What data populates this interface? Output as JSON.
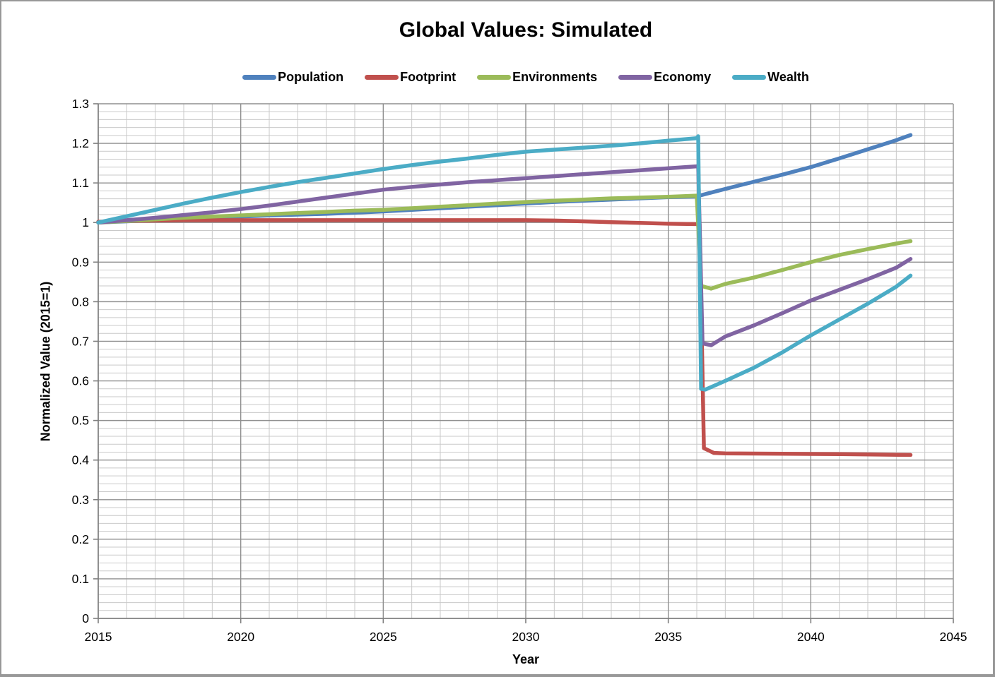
{
  "chart_data": {
    "type": "line",
    "title": "Global Values: Simulated",
    "xlabel": "Year",
    "ylabel": "Normalized Value (2015=1)",
    "legend_position": "top",
    "grid": "major-and-minor",
    "x_range": [
      2015,
      2045
    ],
    "x_major_step": 5,
    "x_minor_step": 1,
    "y_range": [
      0,
      1.3
    ],
    "y_major_step": 0.1,
    "y_minor_step": 0.02,
    "x_ticks": [
      "2015",
      "2020",
      "2025",
      "2030",
      "2035",
      "2040",
      "2045"
    ],
    "y_ticks": [
      "0",
      "0.1",
      "0.2",
      "0.3",
      "0.4",
      "0.5",
      "0.6",
      "0.7",
      "0.8",
      "0.9",
      "1",
      "1.1",
      "1.2",
      "1.3"
    ],
    "collapse_event_year": 2036,
    "series": [
      {
        "name": "Population",
        "color": "#4F81BD",
        "points": [
          [
            2015,
            1.0
          ],
          [
            2016,
            1.003
          ],
          [
            2017,
            1.006
          ],
          [
            2018,
            1.009
          ],
          [
            2019,
            1.012
          ],
          [
            2020,
            1.015
          ],
          [
            2021,
            1.018
          ],
          [
            2022,
            1.02
          ],
          [
            2023,
            1.022
          ],
          [
            2024,
            1.025
          ],
          [
            2025,
            1.028
          ],
          [
            2026,
            1.032
          ],
          [
            2027,
            1.036
          ],
          [
            2028,
            1.04
          ],
          [
            2029,
            1.044
          ],
          [
            2030,
            1.048
          ],
          [
            2031,
            1.052
          ],
          [
            2032,
            1.055
          ],
          [
            2033,
            1.058
          ],
          [
            2034,
            1.061
          ],
          [
            2035,
            1.064
          ],
          [
            2036,
            1.066
          ],
          [
            2036.2,
            1.07
          ],
          [
            2037,
            1.085
          ],
          [
            2038,
            1.103
          ],
          [
            2039,
            1.121
          ],
          [
            2040,
            1.14
          ],
          [
            2041,
            1.162
          ],
          [
            2042,
            1.185
          ],
          [
            2043,
            1.208
          ],
          [
            2043.5,
            1.221
          ]
        ]
      },
      {
        "name": "Footprint",
        "color": "#C0504D",
        "points": [
          [
            2015,
            1.002
          ],
          [
            2016,
            1.004
          ],
          [
            2017,
            1.005
          ],
          [
            2018,
            1.006
          ],
          [
            2020,
            1.006
          ],
          [
            2022,
            1.006
          ],
          [
            2024,
            1.006
          ],
          [
            2026,
            1.006
          ],
          [
            2028,
            1.006
          ],
          [
            2030,
            1.006
          ],
          [
            2031,
            1.005
          ],
          [
            2032,
            1.003
          ],
          [
            2033,
            1.001
          ],
          [
            2034,
            0.999
          ],
          [
            2035,
            0.997
          ],
          [
            2036.1,
            0.996
          ],
          [
            2036.25,
            0.43
          ],
          [
            2036.6,
            0.418
          ],
          [
            2037,
            0.417
          ],
          [
            2039,
            0.416
          ],
          [
            2041,
            0.415
          ],
          [
            2043.5,
            0.413
          ]
        ]
      },
      {
        "name": "Environments",
        "color": "#9BBB59",
        "points": [
          [
            2015,
            1.0
          ],
          [
            2016,
            1.004
          ],
          [
            2017,
            1.008
          ],
          [
            2018,
            1.012
          ],
          [
            2019,
            1.015
          ],
          [
            2020,
            1.018
          ],
          [
            2021,
            1.021
          ],
          [
            2022,
            1.024
          ],
          [
            2023,
            1.027
          ],
          [
            2024,
            1.03
          ],
          [
            2025,
            1.032
          ],
          [
            2026,
            1.036
          ],
          [
            2027,
            1.04
          ],
          [
            2028,
            1.044
          ],
          [
            2029,
            1.048
          ],
          [
            2030,
            1.052
          ],
          [
            2031,
            1.055
          ],
          [
            2032,
            1.058
          ],
          [
            2033,
            1.061
          ],
          [
            2034,
            1.063
          ],
          [
            2035,
            1.065
          ],
          [
            2036,
            1.068
          ],
          [
            2036.15,
            0.84
          ],
          [
            2036.5,
            0.833
          ],
          [
            2037,
            0.845
          ],
          [
            2038,
            0.861
          ],
          [
            2039,
            0.88
          ],
          [
            2040,
            0.9
          ],
          [
            2041,
            0.918
          ],
          [
            2042,
            0.933
          ],
          [
            2043,
            0.947
          ],
          [
            2043.5,
            0.953
          ]
        ]
      },
      {
        "name": "Economy",
        "color": "#8064A2",
        "points": [
          [
            2015,
            1.0
          ],
          [
            2016,
            1.006
          ],
          [
            2017,
            1.012
          ],
          [
            2018,
            1.019
          ],
          [
            2019,
            1.026
          ],
          [
            2020,
            1.034
          ],
          [
            2021,
            1.043
          ],
          [
            2022,
            1.053
          ],
          [
            2023,
            1.063
          ],
          [
            2024,
            1.073
          ],
          [
            2025,
            1.083
          ],
          [
            2026,
            1.09
          ],
          [
            2027,
            1.096
          ],
          [
            2028,
            1.102
          ],
          [
            2029,
            1.107
          ],
          [
            2030,
            1.112
          ],
          [
            2031,
            1.117
          ],
          [
            2032,
            1.122
          ],
          [
            2033,
            1.127
          ],
          [
            2034,
            1.132
          ],
          [
            2035,
            1.137
          ],
          [
            2036,
            1.142
          ],
          [
            2036.05,
            1.144
          ],
          [
            2036.2,
            0.695
          ],
          [
            2036.5,
            0.69
          ],
          [
            2037,
            0.712
          ],
          [
            2038,
            0.74
          ],
          [
            2039,
            0.771
          ],
          [
            2040,
            0.803
          ],
          [
            2041,
            0.83
          ],
          [
            2042,
            0.857
          ],
          [
            2043,
            0.886
          ],
          [
            2043.5,
            0.908
          ]
        ]
      },
      {
        "name": "Wealth",
        "color": "#4BACC6",
        "points": [
          [
            2015,
            1.0
          ],
          [
            2016,
            1.016
          ],
          [
            2017,
            1.032
          ],
          [
            2018,
            1.048
          ],
          [
            2019,
            1.063
          ],
          [
            2020,
            1.077
          ],
          [
            2021,
            1.09
          ],
          [
            2022,
            1.102
          ],
          [
            2023,
            1.113
          ],
          [
            2024,
            1.124
          ],
          [
            2025,
            1.135
          ],
          [
            2026,
            1.145
          ],
          [
            2027,
            1.154
          ],
          [
            2028,
            1.162
          ],
          [
            2029,
            1.171
          ],
          [
            2030,
            1.179
          ],
          [
            2031,
            1.184
          ],
          [
            2032,
            1.189
          ],
          [
            2033,
            1.194
          ],
          [
            2034,
            1.2
          ],
          [
            2035,
            1.207
          ],
          [
            2036,
            1.213
          ],
          [
            2036.05,
            1.218
          ],
          [
            2036.15,
            0.58
          ],
          [
            2036.3,
            0.578
          ],
          [
            2037,
            0.6
          ],
          [
            2038,
            0.633
          ],
          [
            2039,
            0.672
          ],
          [
            2040,
            0.715
          ],
          [
            2041,
            0.755
          ],
          [
            2042,
            0.795
          ],
          [
            2043,
            0.838
          ],
          [
            2043.5,
            0.866
          ]
        ]
      }
    ]
  }
}
